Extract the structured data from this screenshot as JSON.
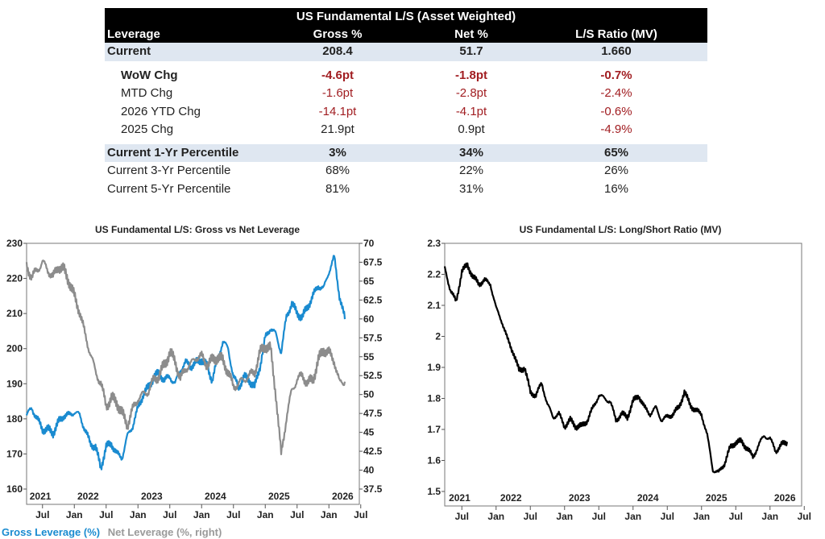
{
  "table": {
    "title": "US Fundamental L/S (Asset Weighted)",
    "headers": [
      "Leverage",
      "Gross %",
      "Net %",
      "L/S Ratio (MV)"
    ],
    "current": {
      "label": "Current",
      "values": [
        "208.4",
        "51.7",
        "1.660"
      ]
    },
    "changes": [
      {
        "label": "WoW Chg",
        "values": [
          "-4.6pt",
          "-1.8pt",
          "-0.7%"
        ],
        "negative": [
          true,
          true,
          true
        ]
      },
      {
        "label": "MTD Chg",
        "values": [
          "-1.6pt",
          "-2.8pt",
          "-2.4%"
        ],
        "negative": [
          true,
          true,
          true
        ]
      },
      {
        "label": "2026 YTD Chg",
        "values": [
          "-14.1pt",
          "-4.1pt",
          "-0.6%"
        ],
        "negative": [
          true,
          true,
          true
        ]
      },
      {
        "label": "2025 Chg",
        "values": [
          "21.9pt",
          "0.9pt",
          "-4.9%"
        ],
        "negative": [
          false,
          false,
          true
        ]
      }
    ],
    "percentiles": [
      {
        "label": "Current 1-Yr Percentile",
        "values": [
          "3%",
          "34%",
          "65%"
        ]
      },
      {
        "label": "Current 3-Yr Percentile",
        "values": [
          "68%",
          "22%",
          "26%"
        ]
      },
      {
        "label": "Current 5-Yr Percentile",
        "values": [
          "81%",
          "31%",
          "16%"
        ]
      }
    ],
    "negative_color": "#a11d21",
    "band_color": "#dfe7f1"
  },
  "chart_data": [
    {
      "type": "line",
      "title": "US Fundamental L/S: Gross vs Net Leverage",
      "x": [
        "2021-04",
        "2021-05",
        "2021-06",
        "2021-07",
        "2021-08",
        "2021-09",
        "2021-10",
        "2021-11",
        "2021-12",
        "2022-01",
        "2022-02",
        "2022-03",
        "2022-04",
        "2022-05",
        "2022-06",
        "2022-07",
        "2022-08",
        "2022-09",
        "2022-10",
        "2022-11",
        "2022-12",
        "2023-01",
        "2023-02",
        "2023-03",
        "2023-04",
        "2023-05",
        "2023-06",
        "2023-07",
        "2023-08",
        "2023-09",
        "2023-10",
        "2023-11",
        "2023-12",
        "2024-01",
        "2024-02",
        "2024-03",
        "2024-04",
        "2024-05",
        "2024-06",
        "2024-07",
        "2024-08",
        "2024-09",
        "2024-10",
        "2024-11",
        "2024-12",
        "2025-01",
        "2025-02",
        "2025-03",
        "2025-04",
        "2025-05",
        "2025-06",
        "2025-07",
        "2025-08",
        "2025-09",
        "2025-10",
        "2025-11",
        "2025-12",
        "2026-01",
        "2026-02",
        "2026-03",
        "2026-04"
      ],
      "series": [
        {
          "name": "Gross Leverage (%)",
          "axis": "left",
          "color": "#1a8bd0",
          "values": [
            181,
            183,
            180,
            177,
            177,
            176,
            179,
            181,
            181,
            182,
            181,
            177,
            173,
            172,
            166,
            172,
            173,
            170,
            169,
            175,
            178,
            183,
            187,
            189,
            192,
            193,
            191,
            192,
            190,
            194,
            196,
            195,
            196,
            197,
            195,
            191,
            197,
            202,
            200,
            192,
            189,
            192,
            191,
            189,
            195,
            203,
            206,
            204,
            199,
            209,
            213,
            210,
            209,
            212,
            215,
            218,
            217,
            222,
            226,
            215,
            208.4
          ]
        },
        {
          "name": "Net Leverage (%, right)",
          "axis": "right",
          "color": "#8c8c8c",
          "values": [
            67,
            65.5,
            66.5,
            67.5,
            66.5,
            65.5,
            67,
            66.5,
            65,
            63,
            61,
            58,
            55.5,
            53,
            51.5,
            48.5,
            49.5,
            49,
            47.5,
            46,
            48,
            49.5,
            50,
            50.5,
            52,
            52.5,
            54,
            55.5,
            54.5,
            52,
            53.5,
            54,
            55,
            55,
            54,
            54.5,
            55,
            54.5,
            53,
            51,
            51.5,
            52,
            52.5,
            53,
            55.5,
            56.5,
            56,
            50,
            42,
            47,
            50.5,
            52,
            52.5,
            51.5,
            52,
            54.5,
            56,
            55.5,
            54.5,
            51.5,
            51.7
          ]
        }
      ],
      "y_left": {
        "range": [
          160,
          230
        ],
        "ticks": [
          "160",
          "170",
          "180",
          "190",
          "200",
          "210",
          "220",
          "230"
        ]
      },
      "y_right": {
        "range": [
          37.5,
          70
        ],
        "ticks": [
          "37.5",
          "40",
          "42.5",
          "45",
          "47.5",
          "50",
          "52.5",
          "55",
          "57.5",
          "60",
          "62.5",
          "65",
          "67.5",
          "70"
        ]
      },
      "x_month_ticks": [
        "Jul",
        "Jan",
        "Jul",
        "Jan",
        "Jul",
        "Jan",
        "Jul",
        "Jan",
        "Jul",
        "Jan",
        "Jul"
      ],
      "x_year_labels": [
        "2021",
        "2022",
        "2023",
        "2024",
        "2025",
        "2026"
      ],
      "grid": false,
      "legend": "bottom-left"
    },
    {
      "type": "line",
      "title": "US Fundamental L/S: Long/Short Ratio (MV)",
      "x": [
        "2021-04",
        "2021-05",
        "2021-06",
        "2021-07",
        "2021-08",
        "2021-09",
        "2021-10",
        "2021-11",
        "2021-12",
        "2022-01",
        "2022-02",
        "2022-03",
        "2022-04",
        "2022-05",
        "2022-06",
        "2022-07",
        "2022-08",
        "2022-09",
        "2022-10",
        "2022-11",
        "2022-12",
        "2023-01",
        "2023-02",
        "2023-03",
        "2023-04",
        "2023-05",
        "2023-06",
        "2023-07",
        "2023-08",
        "2023-09",
        "2023-10",
        "2023-11",
        "2023-12",
        "2024-01",
        "2024-02",
        "2024-03",
        "2024-04",
        "2024-05",
        "2024-06",
        "2024-07",
        "2024-08",
        "2024-09",
        "2024-10",
        "2024-11",
        "2024-12",
        "2025-01",
        "2025-02",
        "2025-03",
        "2025-04",
        "2025-05",
        "2025-06",
        "2025-07",
        "2025-08",
        "2025-09",
        "2025-10",
        "2025-11",
        "2025-12",
        "2026-01",
        "2026-02",
        "2026-03",
        "2026-04"
      ],
      "series": [
        {
          "color": "#000000",
          "values": [
            2.22,
            2.15,
            2.11,
            2.21,
            2.23,
            2.19,
            2.17,
            2.18,
            2.17,
            2.09,
            2.05,
            1.99,
            1.95,
            1.89,
            1.9,
            1.82,
            1.81,
            1.85,
            1.78,
            1.74,
            1.75,
            1.71,
            1.73,
            1.71,
            1.71,
            1.73,
            1.77,
            1.81,
            1.8,
            1.79,
            1.73,
            1.75,
            1.74,
            1.79,
            1.81,
            1.77,
            1.75,
            1.77,
            1.73,
            1.74,
            1.75,
            1.77,
            1.82,
            1.78,
            1.76,
            1.75,
            1.68,
            1.57,
            1.56,
            1.59,
            1.64,
            1.66,
            1.66,
            1.64,
            1.61,
            1.65,
            1.68,
            1.67,
            1.63,
            1.65,
            1.66
          ]
        }
      ],
      "y_left": {
        "range": [
          1.5,
          2.3
        ],
        "ticks": [
          "1.5",
          "1.6",
          "1.7",
          "1.8",
          "1.9",
          "2",
          "2.1",
          "2.2",
          "2.3"
        ]
      },
      "x_month_ticks": [
        "Jul",
        "Jan",
        "Jul",
        "Jan",
        "Jul",
        "Jan",
        "Jul",
        "Jan",
        "Jul",
        "Jan",
        "Jul"
      ],
      "x_year_labels": [
        "2021",
        "2022",
        "2023",
        "2024",
        "2025",
        "2026"
      ],
      "grid": false
    }
  ]
}
